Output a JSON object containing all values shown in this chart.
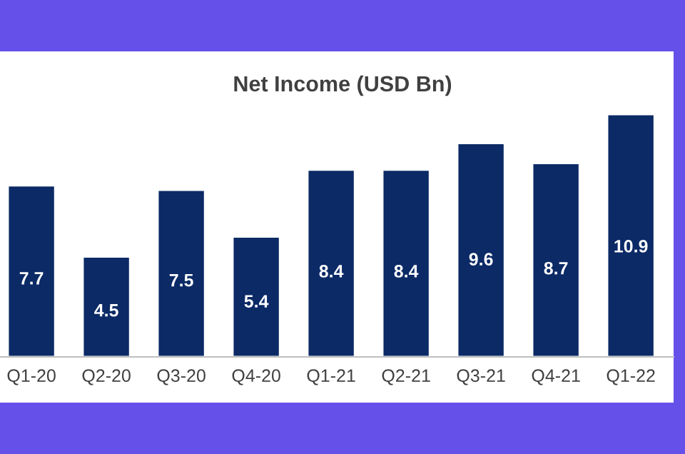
{
  "chart_data": {
    "type": "bar",
    "title": "Net Income (USD Bn)",
    "categories": [
      "Q1-20",
      "Q2-20",
      "Q3-20",
      "Q4-20",
      "Q1-21",
      "Q2-21",
      "Q3-21",
      "Q4-21",
      "Q1-22"
    ],
    "values": [
      7.7,
      4.5,
      7.5,
      5.4,
      8.4,
      8.4,
      9.6,
      8.7,
      10.9
    ],
    "color": "#0b2a66",
    "data_labels": true,
    "grid": false
  }
}
